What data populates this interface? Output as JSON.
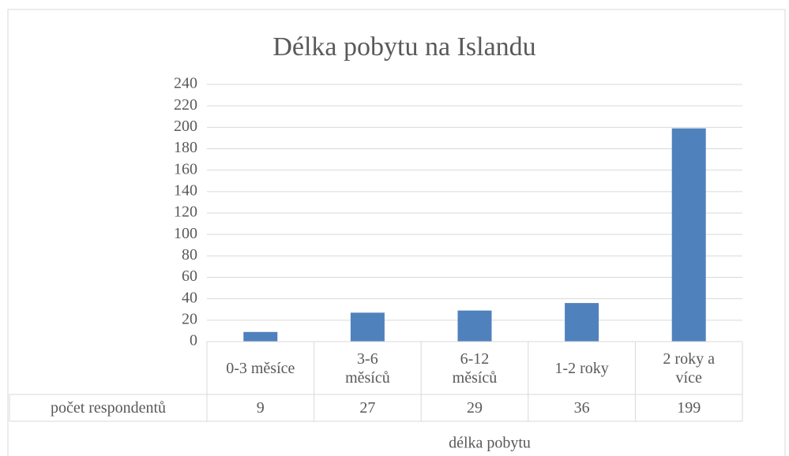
{
  "chart_data": {
    "type": "bar",
    "title": "Délka pobytu na Islandu",
    "categories": [
      "0-3 měsíce",
      "3-6 měsíců",
      "6-12 měsíců",
      "1-2 roky",
      "2 roky a více"
    ],
    "series": [
      {
        "name": "počet respondentů",
        "color": "#4f81bd",
        "values": [
          9,
          27,
          29,
          36,
          199
        ]
      }
    ],
    "xlabel": "délka pobytu",
    "ylim": [
      0,
      240
    ],
    "yticks": [
      0,
      20,
      40,
      60,
      80,
      100,
      120,
      140,
      160,
      180,
      200,
      220,
      240
    ],
    "grid": true,
    "data_table": true
  }
}
